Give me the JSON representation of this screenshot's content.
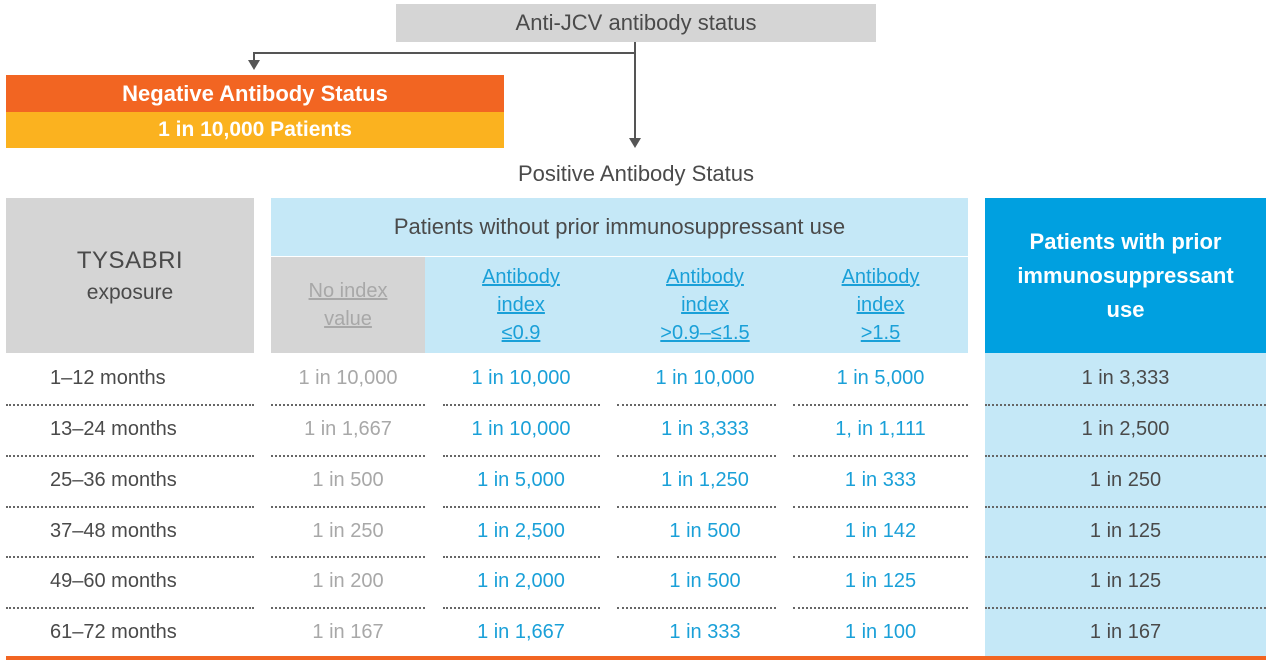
{
  "top_box": {
    "label": "Anti-JCV antibody status"
  },
  "negative": {
    "status_label": "Negative Antibody Status",
    "count_label": "1 in 10,000 Patients"
  },
  "positive": {
    "status_label": "Positive Antibody Status"
  },
  "table": {
    "exposure_header": {
      "line1": "TYSABRI",
      "line2": "exposure"
    },
    "without_header": "Patients without prior immunosuppressant use",
    "subheaders": {
      "no_index": [
        "No index",
        "value"
      ],
      "le_0_9": [
        "Antibody",
        "index",
        "≤0.9"
      ],
      "mid": [
        "Antibody",
        "index",
        ">0.9–≤1.5"
      ],
      "gt_1_5": [
        "Antibody",
        "index",
        ">1.5"
      ]
    },
    "with_header": [
      "Patients with prior",
      "immunosuppressant",
      "use"
    ],
    "rows": [
      {
        "exposure": "1–12 months",
        "no_index": "1 in 10,000",
        "le_0_9": "1 in 10,000",
        "mid": "1 in 10,000",
        "gt_1_5": "1 in 5,000",
        "with_prior": "1 in 3,333"
      },
      {
        "exposure": "13–24 months",
        "no_index": "1 in 1,667",
        "le_0_9": "1 in 10,000",
        "mid": "1 in 3,333",
        "gt_1_5": "1, in 1,111",
        "with_prior": "1 in 2,500"
      },
      {
        "exposure": "25–36 months",
        "no_index": "1 in 500",
        "le_0_9": "1 in 5,000",
        "mid": "1 in 1,250",
        "gt_1_5": "1 in 333",
        "with_prior": "1 in 250"
      },
      {
        "exposure": "37–48 months",
        "no_index": "1 in 250",
        "le_0_9": "1 in 2,500",
        "mid": "1 in 500",
        "gt_1_5": "1 in 142",
        "with_prior": "1 in 125"
      },
      {
        "exposure": "49–60 months",
        "no_index": "1 in 200",
        "le_0_9": "1 in 2,000",
        "mid": "1 in 500",
        "gt_1_5": "1 in 125",
        "with_prior": "1 in 125"
      },
      {
        "exposure": "61–72 months",
        "no_index": "1 in 167",
        "le_0_9": "1 in 1,667",
        "mid": "1 in 333",
        "gt_1_5": "1 in 100",
        "with_prior": "1 in 167"
      }
    ]
  },
  "colors": {
    "orange": "#f26522",
    "amber": "#fbb21f",
    "gray": "#d5d5d5",
    "light_blue": "#c5e8f7",
    "blue": "#00a0e0",
    "link_blue": "#1aa0d8"
  }
}
